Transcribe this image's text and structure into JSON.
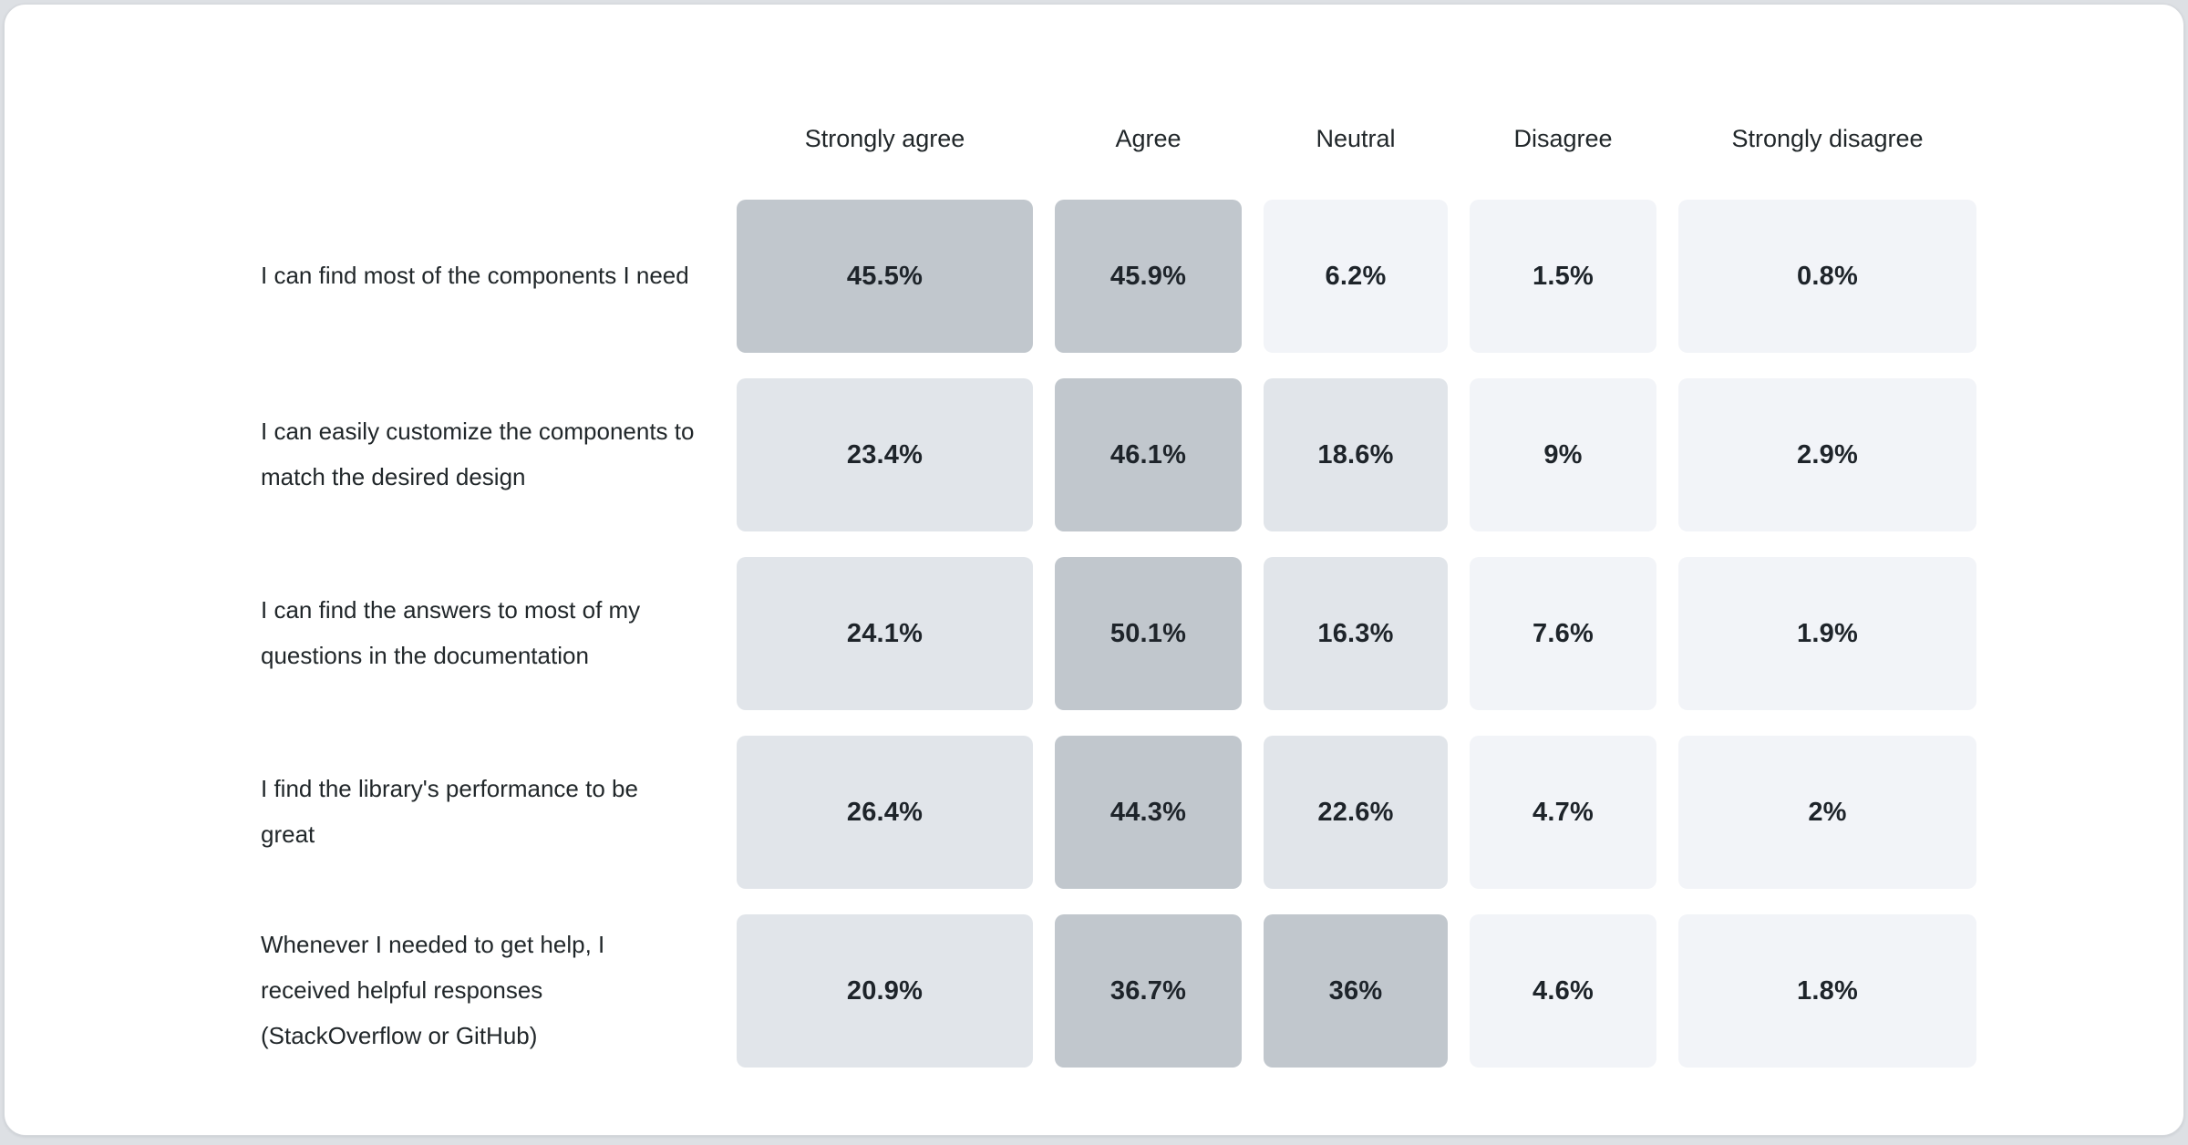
{
  "page": {
    "background_color": "#dde0e4",
    "card_color": "#ffffff"
  },
  "chart_data": {
    "type": "heatmap",
    "title": "",
    "columns": [
      "Strongly agree",
      "Agree",
      "Neutral",
      "Disagree",
      "Strongly disagree"
    ],
    "rows": [
      {
        "label": "I can find most of the components I need",
        "values": [
          45.5,
          45.9,
          6.2,
          1.5,
          0.8
        ],
        "cells": [
          "45.5%",
          "45.9%",
          "6.2%",
          "1.5%",
          "0.8%"
        ]
      },
      {
        "label": "I can easily customize the components to match the desired design",
        "values": [
          23.4,
          46.1,
          18.6,
          9,
          2.9
        ],
        "cells": [
          "23.4%",
          "46.1%",
          "18.6%",
          "9%",
          "2.9%"
        ]
      },
      {
        "label": "I can find the answers to most of my questions in the documentation",
        "values": [
          24.1,
          50.1,
          16.3,
          7.6,
          1.9
        ],
        "cells": [
          "24.1%",
          "50.1%",
          "16.3%",
          "7.6%",
          "1.9%"
        ]
      },
      {
        "label": "I find the library's performance to be great",
        "values": [
          26.4,
          44.3,
          22.6,
          4.7,
          2
        ],
        "cells": [
          "26.4%",
          "44.3%",
          "22.6%",
          "4.7%",
          "2%"
        ]
      },
      {
        "label": "Whenever I needed to get help, I received helpful responses (StackOverflow or GitHub)",
        "values": [
          20.9,
          36.7,
          36,
          4.6,
          1.8
        ],
        "cells": [
          "20.9%",
          "36.7%",
          "36%",
          "4.6%",
          "1.8%"
        ]
      }
    ],
    "color_scale": {
      "description": "cell shade by percentage",
      "thresholds": [
        30,
        10
      ],
      "colors": [
        "#c1c7cd",
        "#e1e5ea",
        "#f2f4f8"
      ],
      "text_color": "#1e242a"
    },
    "legend_position": "none",
    "grid": false
  }
}
